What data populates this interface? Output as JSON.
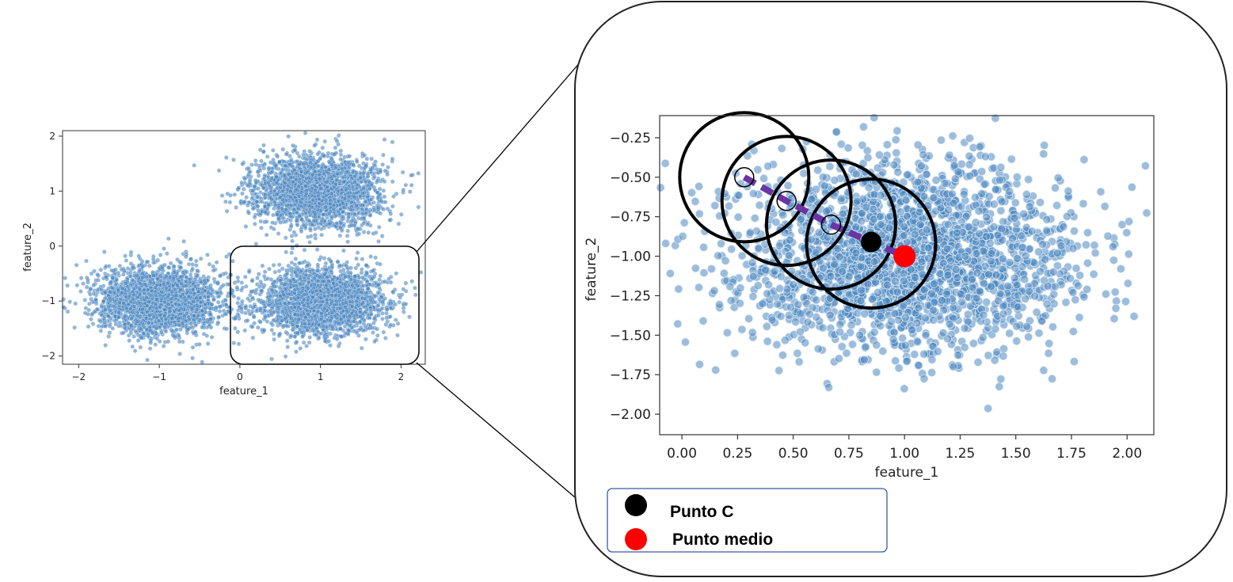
{
  "colors": {
    "point_fill": "#4a86c0",
    "point_stroke": "#dbe7f3",
    "path_color": "#6a35a3",
    "punto_c": "#000000",
    "punto_medio": "#ff0000",
    "legend_border": "#3b5ba0"
  },
  "chart_data": [
    {
      "type": "scatter",
      "title": "",
      "xlabel": "feature_1",
      "ylabel": "feature_2",
      "xlim": [
        -2.2,
        2.3
      ],
      "ylim": [
        -2.15,
        2.1
      ],
      "x_ticks": [
        -2,
        -1,
        0,
        1,
        2
      ],
      "x_tick_labels": [
        "−2",
        "−1",
        "0",
        "1",
        "2"
      ],
      "y_ticks": [
        2,
        1,
        0,
        -1,
        -2
      ],
      "y_tick_labels": [
        "2",
        "1",
        "0",
        "−1",
        "−2"
      ],
      "clusters": [
        {
          "center": [
            0.95,
            1.0
          ],
          "spread": [
            0.38,
            0.32
          ],
          "n": 2600
        },
        {
          "center": [
            -1.0,
            -1.0
          ],
          "spread": [
            0.38,
            0.3
          ],
          "n": 2600
        },
        {
          "center": [
            1.0,
            -1.0
          ],
          "spread": [
            0.38,
            0.3
          ],
          "n": 2600
        }
      ],
      "highlight_region": {
        "x": [
          -0.15,
          2.25
        ],
        "y": [
          -2.2,
          0.05
        ]
      }
    },
    {
      "type": "scatter",
      "title": "",
      "xlabel": "feature_1",
      "ylabel": "feature_2",
      "xlim": [
        -0.1,
        2.12
      ],
      "ylim": [
        -2.13,
        -0.11
      ],
      "x_ticks": [
        0,
        0.25,
        0.5,
        0.75,
        1.0,
        1.25,
        1.5,
        1.75,
        2.0
      ],
      "x_tick_labels": [
        "0.00",
        "0.25",
        "0.50",
        "0.75",
        "1.00",
        "1.25",
        "1.50",
        "1.75",
        "2.00"
      ],
      "y_ticks": [
        -0.25,
        -0.5,
        -0.75,
        -1.0,
        -1.25,
        -1.5,
        -1.75,
        -2.0
      ],
      "y_tick_labels": [
        "−0.25",
        "−0.50",
        "−0.75",
        "−1.00",
        "−1.25",
        "−1.50",
        "−1.75",
        "−2.00"
      ],
      "cluster": {
        "center": [
          1.0,
          -1.0
        ],
        "spread": [
          0.38,
          0.3
        ],
        "n": 2300
      },
      "circles": [
        {
          "x": 0.28,
          "y": -0.5,
          "r": 0.29
        },
        {
          "x": 0.47,
          "y": -0.65,
          "r": 0.29
        },
        {
          "x": 0.67,
          "y": -0.8,
          "r": 0.29
        },
        {
          "x": 0.85,
          "y": -0.92,
          "r": 0.29
        }
      ],
      "path_points": [
        {
          "x": 0.28,
          "y": -0.5
        },
        {
          "x": 0.47,
          "y": -0.65
        },
        {
          "x": 0.67,
          "y": -0.8
        }
      ],
      "punto_c": {
        "x": 0.85,
        "y": -0.91
      },
      "punto_medio": {
        "x": 1.0,
        "y": -1.0
      }
    }
  ],
  "legend": {
    "items": [
      {
        "label": "Punto C",
        "color": "#000000"
      },
      {
        "label": "Punto medio",
        "color": "#ff0000"
      }
    ]
  }
}
